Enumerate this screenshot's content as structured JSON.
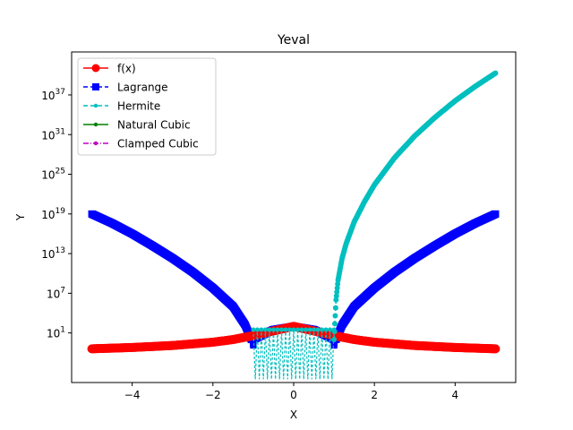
{
  "chart_data": {
    "type": "line",
    "title": "Yeval",
    "xlabel": "X",
    "ylabel": "Y",
    "xlim": [
      -5.5,
      5.5
    ],
    "ylim": [
      -6.5,
      43.5
    ],
    "yscale": "log",
    "x_ticks": [
      -4,
      -2,
      0,
      2,
      4
    ],
    "x_tick_labels": [
      "−4",
      "−2",
      "0",
      "2",
      "4"
    ],
    "y_tick_exponents": [
      1,
      7,
      13,
      19,
      25,
      31,
      37
    ],
    "y_tick_labels": [
      {
        "base": "10",
        "exp": "1"
      },
      {
        "base": "10",
        "exp": "7"
      },
      {
        "base": "10",
        "exp": "13"
      },
      {
        "base": "10",
        "exp": "19"
      },
      {
        "base": "10",
        "exp": "25"
      },
      {
        "base": "10",
        "exp": "31"
      },
      {
        "base": "10",
        "exp": "37"
      }
    ],
    "grid": false,
    "legend_position": "top-left",
    "series": [
      {
        "name": "f(x)",
        "color": "#ff0000",
        "line_style": "solid",
        "marker": "circle",
        "x": [
          -5,
          -4,
          -3,
          -2,
          -1.5,
          -1,
          -0.5,
          0,
          0.5,
          1,
          1.5,
          2,
          3,
          4,
          5
        ],
        "y_log10": [
          -1.4,
          -1.2,
          -0.9,
          -0.4,
          0,
          0.6,
          1.3,
          2,
          1.3,
          0.6,
          0,
          -0.4,
          -0.9,
          -1.2,
          -1.4
        ]
      },
      {
        "name": "Lagrange",
        "color": "#0000ff",
        "line_style": "dashed",
        "marker": "square",
        "x": [
          -5,
          -4.5,
          -4,
          -3.5,
          -3,
          -2.5,
          -2,
          -1.5,
          -1.2,
          -1.05,
          -1,
          -0.5,
          0,
          0.5,
          1,
          1.05,
          1.2,
          1.5,
          2,
          2.5,
          3,
          3.5,
          4,
          4.5,
          5
        ],
        "y_log10": [
          19,
          17.6,
          16,
          14.2,
          12.3,
          10.2,
          7.8,
          5,
          2.2,
          0,
          0,
          1.5,
          2,
          1.5,
          0,
          0,
          2.2,
          5,
          7.8,
          10.2,
          12.3,
          14.2,
          16,
          17.6,
          19
        ]
      },
      {
        "name": "Hermite",
        "color": "#00bfbf",
        "line_style": "dashed",
        "marker": "point",
        "x": [
          1,
          1.05,
          1.1,
          1.2,
          1.3,
          1.5,
          1.75,
          2,
          2.5,
          3,
          3.5,
          4,
          4.5,
          5
        ],
        "y_log10": [
          0,
          6,
          9,
          12.3,
          14.5,
          17.8,
          20.8,
          23.4,
          27.5,
          30.8,
          33.6,
          36.1,
          38.3,
          40.3
        ],
        "center_oscillation": {
          "x_range": [
            -1,
            1
          ],
          "peak_log10": 1.5,
          "trough_log10": -6
        }
      },
      {
        "name": "Natural Cubic",
        "color": "#008000",
        "line_style": "solid",
        "marker": "point",
        "x": [],
        "y_log10": []
      },
      {
        "name": "Clamped Cubic",
        "color": "#bf00bf",
        "line_style": "dashdot",
        "marker": "point",
        "x": [],
        "y_log10": []
      }
    ]
  }
}
